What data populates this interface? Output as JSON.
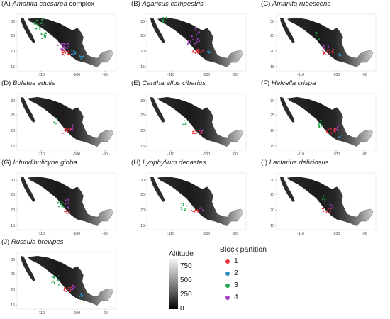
{
  "axes": {
    "x_ticks": [
      "-110",
      "-100",
      "-90"
    ],
    "y_ticks": [
      "30",
      "25",
      "20",
      "15"
    ]
  },
  "panels": [
    {
      "letter": "(A)",
      "species": "Amanita caesarea",
      "suffix": " complex"
    },
    {
      "letter": "(B)",
      "species": "Agaricus campestris",
      "suffix": ""
    },
    {
      "letter": "(C)",
      "species": "Amanita rubescens",
      "suffix": ""
    },
    {
      "letter": "(D)",
      "species": "Boletus edulis",
      "suffix": ""
    },
    {
      "letter": "(E)",
      "species": "Cantharellus cibarius",
      "suffix": ""
    },
    {
      "letter": "(F)",
      "species": "Helvella crispa",
      "suffix": ""
    },
    {
      "letter": "(G)",
      "species": "Infundibulicybe gibba",
      "suffix": ""
    },
    {
      "letter": "(H)",
      "species": "Lyophyllum decastes",
      "suffix": ""
    },
    {
      "letter": "(I)",
      "species": "Lactarius deliciosus",
      "suffix": ""
    },
    {
      "letter": "(J)",
      "species": "Russula brevipes",
      "suffix": ""
    }
  ],
  "altitude_legend": {
    "title": "Altitude",
    "labels": [
      "750",
      "500",
      "250",
      "0"
    ],
    "gradient_colors": [
      "#f2f2f2",
      "#9a9a9a",
      "#505050",
      "#000000"
    ]
  },
  "block_legend": {
    "title": "Block partition",
    "items": [
      {
        "label": "1",
        "color": "#e8303f"
      },
      {
        "label": "2",
        "color": "#2b8cc4"
      },
      {
        "label": "3",
        "color": "#1fa64a"
      },
      {
        "label": "4",
        "color": "#a23fc4"
      }
    ]
  }
}
